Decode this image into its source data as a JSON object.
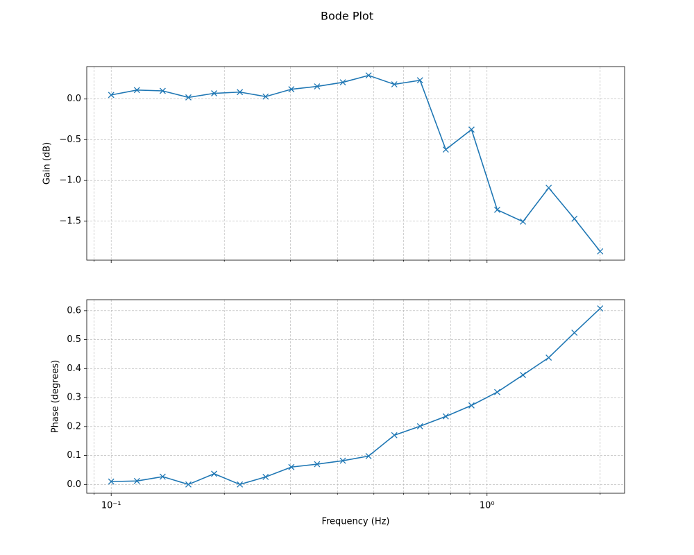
{
  "title": "Bode Plot",
  "chart_data": [
    {
      "type": "line",
      "ylabel": "Gain (dB)",
      "xscale": "log",
      "grid": true,
      "marker": "x",
      "color": "#1f77b4",
      "x": [
        0.1,
        0.1171,
        0.1371,
        0.1605,
        0.1879,
        0.22,
        0.2576,
        0.3016,
        0.3531,
        0.4134,
        0.484,
        0.5667,
        0.6634,
        0.7767,
        0.9093,
        1.0645,
        1.2463,
        1.4592,
        1.7083,
        2.0
      ],
      "values": [
        0.05,
        0.11,
        0.1,
        0.02,
        0.07,
        0.085,
        0.03,
        0.12,
        0.155,
        0.205,
        0.29,
        0.18,
        0.23,
        -0.62,
        -0.375,
        -1.36,
        -1.505,
        -1.09,
        -1.47,
        -1.87
      ],
      "xlim": [
        0.0861,
        2.323
      ],
      "xticks": [
        {
          "value": 0.1,
          "label": ""
        },
        {
          "value": 1,
          "label": ""
        }
      ],
      "xminor_ticks": [
        0.09,
        0.2,
        0.3,
        0.4,
        0.5,
        0.6,
        0.7,
        0.8,
        0.9,
        2
      ],
      "ylim": [
        -1.978,
        0.398
      ],
      "yticks": [
        {
          "value": -1.5,
          "label": "−1.5"
        },
        {
          "value": -1.0,
          "label": "−1.0"
        },
        {
          "value": -0.5,
          "label": "−0.5"
        },
        {
          "value": 0,
          "label": "0.0"
        }
      ]
    },
    {
      "type": "line",
      "ylabel": "Phase (degrees)",
      "xlabel": "Frequency (Hz)",
      "xscale": "log",
      "grid": true,
      "marker": "x",
      "color": "#1f77b4",
      "x": [
        0.1,
        0.1171,
        0.1371,
        0.1605,
        0.1879,
        0.22,
        0.2576,
        0.3016,
        0.3531,
        0.4134,
        0.484,
        0.5667,
        0.6634,
        0.7767,
        0.9093,
        1.0645,
        1.2463,
        1.4592,
        1.7083,
        2.0
      ],
      "values": [
        0.01,
        0.012,
        0.027,
        0.0,
        0.037,
        0.0,
        0.026,
        0.06,
        0.07,
        0.082,
        0.098,
        0.17,
        0.201,
        0.235,
        0.273,
        0.319,
        0.378,
        0.438,
        0.524,
        0.608
      ],
      "xlim": [
        0.0861,
        2.323
      ],
      "xticks": [
        {
          "value": 0.1,
          "label": "10⁻¹"
        },
        {
          "value": 1,
          "label": "10⁰"
        }
      ],
      "xminor_ticks": [
        0.09,
        0.2,
        0.3,
        0.4,
        0.5,
        0.6,
        0.7,
        0.8,
        0.9,
        2
      ],
      "ylim": [
        -0.0304,
        0.638
      ],
      "yticks": [
        {
          "value": 0,
          "label": "0.0"
        },
        0.1,
        0.2,
        0.3,
        0.4,
        0.5,
        0.6
      ]
    }
  ]
}
